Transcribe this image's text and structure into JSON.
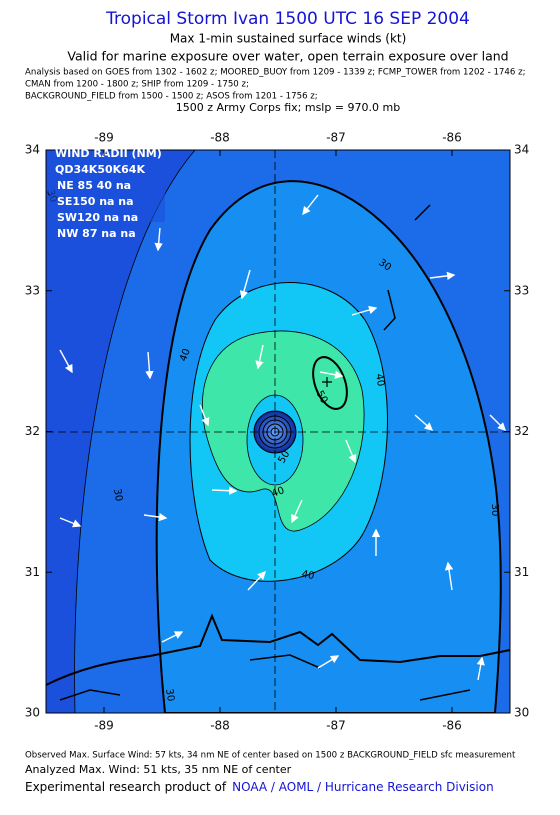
{
  "header": {
    "title": "Tropical Storm Ivan 1500 UTC 16 SEP 2004",
    "subtitle": "Max 1-min sustained surface winds (kt)",
    "validity": "Valid for marine exposure over water, open terrain exposure over land",
    "analysis_lines": [
      "Analysis based on  GOES from 1302 - 1602 z;  MOORED_BUOY from 1209 - 1339 z;  FCMP_TOWER from 1202 - 1746 z;",
      "CMAN from 1200 - 1800 z;  SHIP from 1209 - 1750 z;",
      "BACKGROUND_FIELD from 1500 - 1500 z;  ASOS from 1201 - 1756 z;"
    ],
    "fix": "1500 z Army Corps fix; mslp = 970.0 mb"
  },
  "map": {
    "xlim": [
      -89.5,
      -85.5
    ],
    "ylim": [
      30,
      34
    ],
    "xticks": [
      -89,
      -88,
      -87,
      -86
    ],
    "yticks": [
      30,
      31,
      32,
      33,
      34
    ],
    "contours": [
      {
        "level": 30
      },
      {
        "level": 40
      },
      {
        "level": 50
      }
    ]
  },
  "wind_radii": {
    "title": "WIND RADII (NM)",
    "header": "QD34K50K64K",
    "rows": [
      "NE 85 40 na",
      "SE150 na na",
      "SW120 na na",
      "NW 87 na na"
    ]
  },
  "footer": {
    "observed": "Observed Max. Surface Wind: 57 kts, 34 nm NE of center based on 1500 z BACKGROUND_FIELD sfc measurement",
    "analyzed": "Analyzed Max. Wind: 51 kts, 35 nm NE of center",
    "credit": "Experimental research product of",
    "credit_link": "NOAA / AOML / Hurricane Research Division"
  }
}
